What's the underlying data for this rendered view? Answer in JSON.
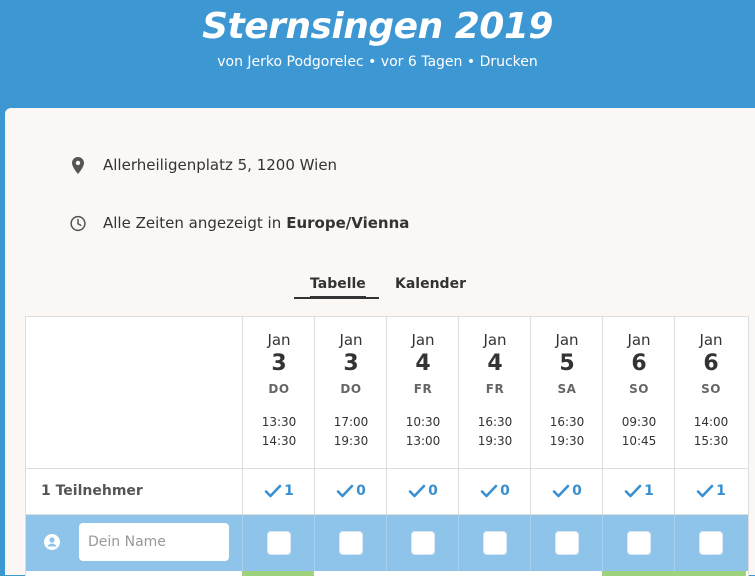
{
  "header": {
    "title": "Sternsingen 2019",
    "author_text": "von Jerko Podgorelec",
    "sep1": "•",
    "time_ago": "vor 6 Tagen",
    "sep2": "•",
    "print_label": "Drucken"
  },
  "info": {
    "location": "Allerheiligenplatz 5, 1200 Wien",
    "timezone_prefix": "Alle Zeiten angezeigt in",
    "timezone": "Europe/Vienna"
  },
  "tabs": {
    "table": "Tabelle",
    "calendar": "Kalender",
    "active": "Tabelle"
  },
  "participants_label": "1 Teilnehmer",
  "name_input": {
    "placeholder": "Dein Name",
    "value": ""
  },
  "options": [
    {
      "month": "Jan",
      "day": "3",
      "dow": "DO",
      "start": "13:30",
      "end": "14:30",
      "count": "1"
    },
    {
      "month": "Jan",
      "day": "3",
      "dow": "DO",
      "start": "17:00",
      "end": "19:30",
      "count": "0"
    },
    {
      "month": "Jan",
      "day": "4",
      "dow": "FR",
      "start": "10:30",
      "end": "13:00",
      "count": "0"
    },
    {
      "month": "Jan",
      "day": "4",
      "dow": "FR",
      "start": "16:30",
      "end": "19:30",
      "count": "0"
    },
    {
      "month": "Jan",
      "day": "5",
      "dow": "SA",
      "start": "16:30",
      "end": "19:30",
      "count": "0"
    },
    {
      "month": "Jan",
      "day": "6",
      "dow": "SO",
      "start": "09:30",
      "end": "10:45",
      "count": "1"
    },
    {
      "month": "Jan",
      "day": "6",
      "dow": "SO",
      "start": "14:00",
      "end": "15:30",
      "count": "1"
    }
  ],
  "colors": {
    "header_bg": "#3d97d3",
    "panel_bg": "#faf7f4",
    "entry_row_bg": "#8ec3ea",
    "check": "#3a8fcf",
    "yes_bar": "#9ed27d"
  }
}
